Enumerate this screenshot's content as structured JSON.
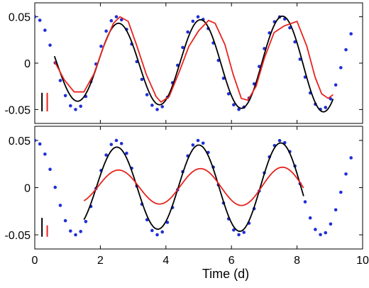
{
  "chart_data": [
    {
      "type": "line",
      "panel": "top",
      "x_range": [
        0,
        10
      ],
      "ylim": [
        -0.065,
        0.065
      ],
      "y_ticks": [
        0.05,
        0,
        -0.05
      ],
      "y_tick_labels": [
        "0.05",
        "0",
        "-0.05"
      ],
      "x_ticks": [
        0,
        2,
        4,
        6,
        8,
        10
      ],
      "x_tick_labels": [],
      "grid": false,
      "legend": "none",
      "scale_bars": [
        {
          "color": "#000000",
          "x": 0.22,
          "y_low": -0.052,
          "y_high": -0.032
        },
        {
          "color": "#e8231e",
          "x": 0.38,
          "y_low": -0.052,
          "y_high": -0.032
        }
      ],
      "series": [
        {
          "style": "dots",
          "color": "#1f2fd8",
          "x_start": 0.0,
          "x_step": 0.1556,
          "count": 63,
          "amplitude": 0.05,
          "period_days": 2.5,
          "peak_at": 0.0
        },
        {
          "style": "line",
          "color": "#000000",
          "x_start": 0.6,
          "x_end": 9.1,
          "amplitude_start": 0.04,
          "amplitude_end": 0.053,
          "period_days": 2.5,
          "peak_at": 2.55,
          "offset": 0.0
        },
        {
          "style": "line",
          "color": "#e8231e",
          "points": [
            [
              0.6,
              0.002
            ],
            [
              0.9,
              -0.018
            ],
            [
              1.2,
              -0.031
            ],
            [
              1.5,
              -0.031
            ],
            [
              1.8,
              -0.012
            ],
            [
              2.1,
              0.018
            ],
            [
              2.4,
              0.043
            ],
            [
              2.6,
              0.05
            ],
            [
              2.85,
              0.045
            ],
            [
              3.1,
              0.02
            ],
            [
              3.4,
              -0.012
            ],
            [
              3.7,
              -0.036
            ],
            [
              3.85,
              -0.042
            ],
            [
              4.1,
              -0.036
            ],
            [
              4.4,
              -0.01
            ],
            [
              4.7,
              0.018
            ],
            [
              5.0,
              0.035
            ],
            [
              5.3,
              0.046
            ],
            [
              5.5,
              0.043
            ],
            [
              5.8,
              0.02
            ],
            [
              6.05,
              -0.012
            ],
            [
              6.3,
              -0.038
            ],
            [
              6.5,
              -0.04
            ],
            [
              6.75,
              -0.025
            ],
            [
              7.0,
              0.005
            ],
            [
              7.3,
              0.033
            ],
            [
              7.6,
              0.04
            ],
            [
              8.0,
              0.045
            ],
            [
              8.3,
              0.018
            ],
            [
              8.55,
              -0.015
            ],
            [
              8.75,
              -0.033
            ],
            [
              8.95,
              -0.038
            ],
            [
              9.1,
              -0.034
            ]
          ]
        }
      ]
    },
    {
      "type": "line",
      "panel": "bottom",
      "x_range": [
        0,
        10
      ],
      "ylim": [
        -0.065,
        0.065
      ],
      "y_ticks": [
        0.05,
        0,
        -0.05
      ],
      "y_tick_labels": [
        "0.05",
        "0",
        "-0.05"
      ],
      "x_ticks": [
        0,
        2,
        4,
        6,
        8,
        10
      ],
      "x_tick_labels": [
        "0",
        "2",
        "4",
        "6",
        "8",
        "10"
      ],
      "xlabel": "Time (d)",
      "grid": false,
      "legend": "none",
      "scale_bars": [
        {
          "color": "#000000",
          "x": 0.22,
          "y_low": -0.052,
          "y_high": -0.032
        },
        {
          "color": "#e8231e",
          "x": 0.38,
          "y_low": -0.052,
          "y_high": -0.04
        }
      ],
      "series": [
        {
          "style": "dots",
          "color": "#1f2fd8",
          "x_start": 0.0,
          "x_step": 0.1556,
          "count": 63,
          "amplitude": 0.05,
          "period_days": 2.5,
          "peak_at": 0.0
        },
        {
          "style": "line",
          "color": "#000000",
          "x_start": 1.5,
          "x_end": 8.2,
          "amplitude_start": 0.042,
          "amplitude_end": 0.048,
          "period_days": 2.5,
          "peak_at": 2.5,
          "offset": 0.0
        },
        {
          "style": "line",
          "color": "#e8231e",
          "x_start": 1.5,
          "x_end": 8.2,
          "amplitude_start": 0.017,
          "amplitude_end": 0.021,
          "period_days": 2.5,
          "peak_at": 2.55,
          "offset": 0.001
        }
      ]
    }
  ]
}
